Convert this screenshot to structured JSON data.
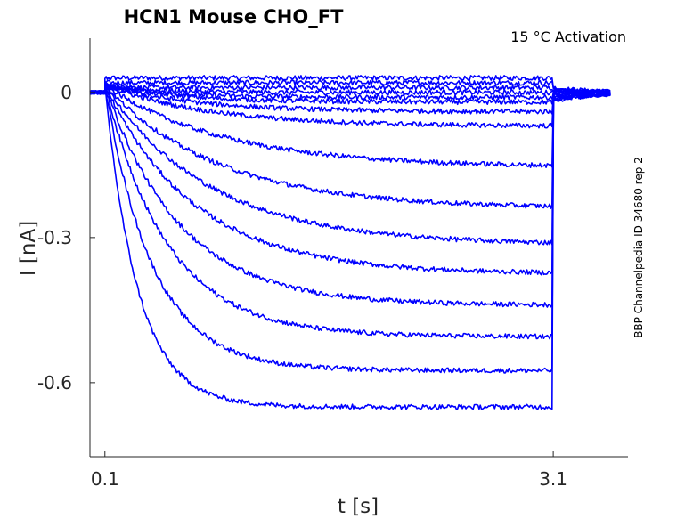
{
  "chart_data": {
    "type": "line",
    "title": "HCN1  Mouse  CHO_FT",
    "annotation": "15 °C  Activation",
    "side_label": "BBP Channelpedia ID 34680 rep 2",
    "xlabel": "t [s]",
    "ylabel": "I [nA]",
    "xlim": [
      0.0,
      3.6
    ],
    "ylim": [
      -0.753,
      0.112
    ],
    "x_ticks": [
      0.1,
      3.1
    ],
    "x_tick_labels": [
      "0.1",
      "3.1"
    ],
    "y_ticks": [
      0,
      -0.3,
      -0.6
    ],
    "y_tick_labels": [
      "0",
      "-0.3",
      "-0.6"
    ],
    "grid": false,
    "box": false,
    "series_color": "#0000ff",
    "pulse_start_s": 0.1,
    "pulse_end_s": 3.1,
    "baseline_nA": 0,
    "series": [
      {
        "steady_state_nA": 0.03,
        "tau_s": 0.2
      },
      {
        "steady_state_nA": 0.02,
        "tau_s": 0.2
      },
      {
        "steady_state_nA": 0.01,
        "tau_s": 0.3
      },
      {
        "steady_state_nA": 0.0,
        "tau_s": 0.3
      },
      {
        "steady_state_nA": -0.01,
        "tau_s": 0.4
      },
      {
        "steady_state_nA": -0.02,
        "tau_s": 0.5
      },
      {
        "steady_state_nA": -0.04,
        "tau_s": 0.6
      },
      {
        "steady_state_nA": -0.07,
        "tau_s": 0.7
      },
      {
        "steady_state_nA": -0.155,
        "tau_s": 0.8
      },
      {
        "steady_state_nA": -0.24,
        "tau_s": 0.75
      },
      {
        "steady_state_nA": -0.315,
        "tau_s": 0.7
      },
      {
        "steady_state_nA": -0.375,
        "tau_s": 0.6
      },
      {
        "steady_state_nA": -0.44,
        "tau_s": 0.5
      },
      {
        "steady_state_nA": -0.505,
        "tau_s": 0.42
      },
      {
        "steady_state_nA": -0.575,
        "tau_s": 0.32
      },
      {
        "steady_state_nA": -0.65,
        "tau_s": 0.22
      }
    ]
  }
}
